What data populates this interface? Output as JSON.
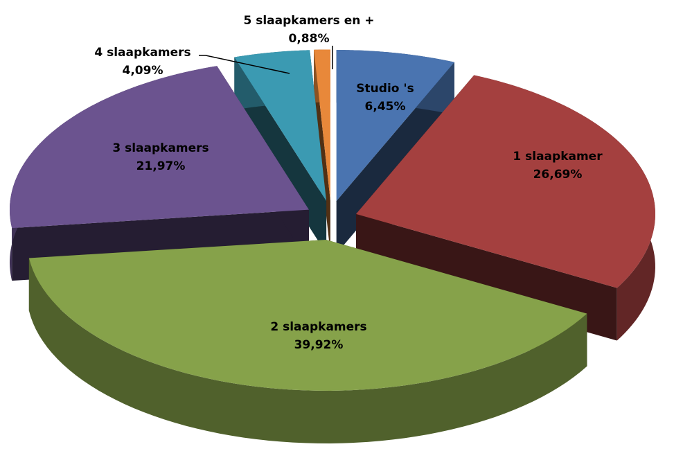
{
  "chart_data": {
    "type": "pie",
    "categories": [
      "Studio 's",
      "1 slaapkamer",
      "2 slaapkamers",
      "3 slaapkamers",
      "4 slaapkamers",
      "5 slaapkamers en +"
    ],
    "values": [
      6.45,
      26.69,
      39.92,
      21.97,
      4.09,
      0.88
    ],
    "value_labels": [
      "6,45%",
      "26,69%",
      "39,92%",
      "21,97%",
      "4,09%",
      "0,88%"
    ],
    "colors": [
      "#4a74b0",
      "#a4403f",
      "#86a24a",
      "#6b538f",
      "#3b9ab2",
      "#e8883a"
    ]
  }
}
